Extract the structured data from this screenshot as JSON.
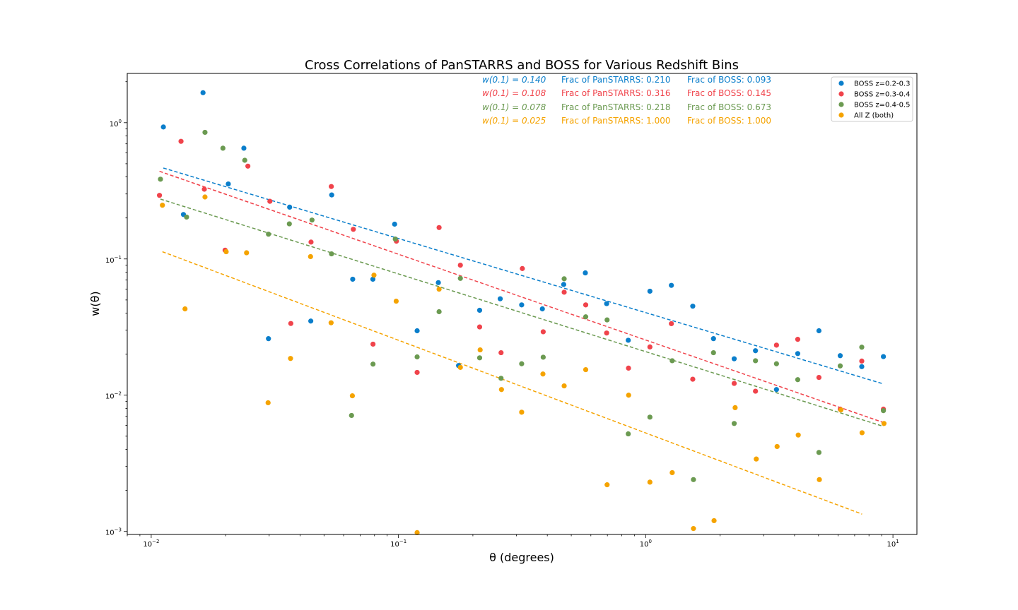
{
  "chart_data": {
    "type": "scatter",
    "title": "Cross Correlations of PanSTARRS and BOSS for Various Redshift Bins",
    "xlabel": "θ (degrees)",
    "ylabel": "w(θ)",
    "xscale": "log",
    "yscale": "log",
    "xlim": [
      0.008,
      12.5
    ],
    "ylim": [
      0.00095,
      2.3
    ],
    "xticks": [
      {
        "value": 0.01,
        "base": "10",
        "exp": "−2"
      },
      {
        "value": 0.1,
        "base": "10",
        "exp": "−1"
      },
      {
        "value": 1,
        "base": "10",
        "exp": "0"
      },
      {
        "value": 10,
        "base": "10",
        "exp": "1"
      }
    ],
    "yticks": [
      {
        "value": 0.001,
        "base": "10",
        "exp": "−3"
      },
      {
        "value": 0.01,
        "base": "10",
        "exp": "−2"
      },
      {
        "value": 0.1,
        "base": "10",
        "exp": "−1"
      },
      {
        "value": 1,
        "base": "10",
        "exp": "0"
      }
    ],
    "legend_position": "top-right",
    "grid": false,
    "series": [
      {
        "name": "BOSS z=0.2-0.3",
        "color": "#0a7ecb",
        "points": [
          [
            0.0112,
            0.93
          ],
          [
            0.0135,
            0.212
          ],
          [
            0.0162,
            1.66
          ],
          [
            0.0205,
            0.355
          ],
          [
            0.0237,
            0.65
          ],
          [
            0.0298,
            0.026
          ],
          [
            0.0363,
            0.24
          ],
          [
            0.0442,
            0.035
          ],
          [
            0.0537,
            0.295
          ],
          [
            0.0653,
            0.071
          ],
          [
            0.0788,
            0.071
          ],
          [
            0.0965,
            0.18
          ],
          [
            0.119,
            0.0297
          ],
          [
            0.145,
            0.067
          ],
          [
            0.175,
            0.0165
          ],
          [
            0.213,
            0.042
          ],
          [
            0.258,
            0.051
          ],
          [
            0.315,
            0.046
          ],
          [
            0.382,
            0.043
          ],
          [
            0.466,
            0.065
          ],
          [
            0.57,
            0.079
          ],
          [
            0.695,
            0.047
          ],
          [
            0.85,
            0.0253
          ],
          [
            1.04,
            0.058
          ],
          [
            1.27,
            0.064
          ],
          [
            1.55,
            0.045
          ],
          [
            1.88,
            0.026
          ],
          [
            2.28,
            0.0185
          ],
          [
            2.78,
            0.0212
          ],
          [
            3.38,
            0.011
          ],
          [
            4.12,
            0.0202
          ],
          [
            5.02,
            0.0297
          ],
          [
            6.12,
            0.0195
          ],
          [
            7.48,
            0.0162
          ],
          [
            9.15,
            0.0192
          ]
        ],
        "fit": {
          "x": [
            0.0112,
            9.15
          ],
          "y": [
            0.465,
            0.0121
          ]
        }
      },
      {
        "name": "BOSS z=0.3-0.4",
        "color": "#f0434b",
        "points": [
          [
            0.0108,
            0.293
          ],
          [
            0.0132,
            0.73
          ],
          [
            0.0164,
            0.325
          ],
          [
            0.0199,
            0.116
          ],
          [
            0.0246,
            0.48
          ],
          [
            0.0302,
            0.265
          ],
          [
            0.0367,
            0.0336
          ],
          [
            0.0443,
            0.133
          ],
          [
            0.0535,
            0.34
          ],
          [
            0.0657,
            0.165
          ],
          [
            0.0789,
            0.0237
          ],
          [
            0.0981,
            0.135
          ],
          [
            0.119,
            0.0147
          ],
          [
            0.146,
            0.17
          ],
          [
            0.178,
            0.09
          ],
          [
            0.213,
            0.0317
          ],
          [
            0.26,
            0.0205
          ],
          [
            0.317,
            0.085
          ],
          [
            0.385,
            0.0292
          ],
          [
            0.468,
            0.057
          ],
          [
            0.572,
            0.046
          ],
          [
            0.695,
            0.0286
          ],
          [
            0.852,
            0.0158
          ],
          [
            1.04,
            0.0226
          ],
          [
            1.27,
            0.0335
          ],
          [
            1.55,
            0.0131
          ],
          [
            2.28,
            0.0122
          ],
          [
            2.78,
            0.0107
          ],
          [
            3.38,
            0.0233
          ],
          [
            4.12,
            0.0257
          ],
          [
            5.02,
            0.0135
          ],
          [
            6.12,
            0.0079
          ],
          [
            7.48,
            0.0178
          ],
          [
            9.15,
            0.0079
          ]
        ],
        "fit": {
          "x": [
            0.0108,
            9.15
          ],
          "y": [
            0.44,
            0.0063
          ]
        }
      },
      {
        "name": "BOSS z=0.4-0.5",
        "color": "#6b9a51",
        "points": [
          [
            0.0109,
            0.385
          ],
          [
            0.0139,
            0.203
          ],
          [
            0.0165,
            0.85
          ],
          [
            0.0195,
            0.65
          ],
          [
            0.0239,
            0.53
          ],
          [
            0.0298,
            0.152
          ],
          [
            0.0362,
            0.181
          ],
          [
            0.0447,
            0.193
          ],
          [
            0.0536,
            0.109
          ],
          [
            0.0646,
            0.0071
          ],
          [
            0.0789,
            0.0169
          ],
          [
            0.0971,
            0.14
          ],
          [
            0.119,
            0.0191
          ],
          [
            0.146,
            0.041
          ],
          [
            0.178,
            0.072
          ],
          [
            0.213,
            0.0188
          ],
          [
            0.26,
            0.0133
          ],
          [
            0.315,
            0.017
          ],
          [
            0.385,
            0.019
          ],
          [
            0.468,
            0.0715
          ],
          [
            0.572,
            0.0376
          ],
          [
            0.698,
            0.0357
          ],
          [
            0.85,
            0.0052
          ],
          [
            1.04,
            0.0069
          ],
          [
            1.28,
            0.0179
          ],
          [
            1.56,
            0.0024
          ],
          [
            1.88,
            0.0205
          ],
          [
            2.28,
            0.0062
          ],
          [
            2.78,
            0.0179
          ],
          [
            3.38,
            0.017
          ],
          [
            4.12,
            0.013
          ],
          [
            5.02,
            0.0038
          ],
          [
            6.12,
            0.0164
          ],
          [
            7.48,
            0.0225
          ],
          [
            9.15,
            0.0077
          ]
        ],
        "fit": {
          "x": [
            0.0109,
            9.15
          ],
          "y": [
            0.275,
            0.0059
          ]
        }
      },
      {
        "name": "All Z (both)",
        "color": "#f5a300",
        "points": [
          [
            0.0111,
            0.248
          ],
          [
            0.0137,
            0.043
          ],
          [
            0.0165,
            0.285
          ],
          [
            0.0201,
            0.113
          ],
          [
            0.0243,
            0.111
          ],
          [
            0.0297,
            0.0088
          ],
          [
            0.0366,
            0.0186
          ],
          [
            0.0441,
            0.104
          ],
          [
            0.0534,
            0.034
          ],
          [
            0.0651,
            0.0099
          ],
          [
            0.0796,
            0.076
          ],
          [
            0.0979,
            0.049
          ],
          [
            0.119,
            0.00098
          ],
          [
            0.146,
            0.06
          ],
          [
            0.178,
            0.016
          ],
          [
            0.214,
            0.0215
          ],
          [
            0.261,
            0.011
          ],
          [
            0.315,
            0.0075
          ],
          [
            0.384,
            0.0143
          ],
          [
            0.468,
            0.0117
          ],
          [
            0.572,
            0.0154
          ],
          [
            0.698,
            0.0022
          ],
          [
            0.853,
            0.01
          ],
          [
            1.04,
            0.0023
          ],
          [
            1.28,
            0.0027
          ],
          [
            1.56,
            0.00105
          ],
          [
            1.89,
            0.0012
          ],
          [
            2.3,
            0.0081
          ],
          [
            2.8,
            0.0034
          ],
          [
            3.4,
            0.0042
          ],
          [
            4.14,
            0.0051
          ],
          [
            5.04,
            0.0024
          ],
          [
            6.16,
            0.0078
          ],
          [
            7.5,
            0.0053
          ],
          [
            9.2,
            0.0062
          ]
        ],
        "fit": {
          "x": [
            0.0111,
            7.5
          ],
          "y": [
            0.113,
            0.00134
          ]
        }
      }
    ],
    "annotations": [
      {
        "w": "w(0.1) = 0.140",
        "pan": "Frac of PanSTARRS: 0.210",
        "boss": "Frac of BOSS: 0.093",
        "color": "#0a7ecb"
      },
      {
        "w": "w(0.1) = 0.108",
        "pan": "Frac of PanSTARRS: 0.316",
        "boss": "Frac of BOSS: 0.145",
        "color": "#f0434b"
      },
      {
        "w": "w(0.1) = 0.078",
        "pan": "Frac of PanSTARRS: 0.218",
        "boss": "Frac of BOSS: 0.673",
        "color": "#6b9a51"
      },
      {
        "w": "w(0.1) = 0.025",
        "pan": "Frac of PanSTARRS: 1.000",
        "boss": "Frac of BOSS: 1.000",
        "color": "#f5a300"
      }
    ]
  }
}
